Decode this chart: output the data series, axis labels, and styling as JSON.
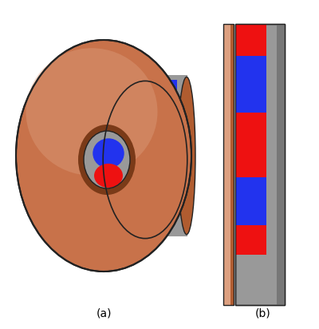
{
  "bg_color": "#ffffff",
  "title_a": "(a)",
  "title_b": "(b)",
  "copper_color": "#c8724a",
  "copper_light": "#dda080",
  "copper_dark": "#7a3a18",
  "copper_mid": "#b05c30",
  "red_color": "#ee1111",
  "blue_color": "#2233ee",
  "gray_color": "#aaaaaa",
  "gray_dark": "#777777",
  "gray_light": "#cccccc",
  "gray_mid": "#999999",
  "dark_outline": "#222222",
  "font_size": 10
}
